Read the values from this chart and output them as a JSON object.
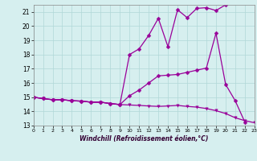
{
  "xlabel": "Windchill (Refroidissement éolien,°C)",
  "xlim": [
    0,
    23
  ],
  "ylim": [
    13,
    21.5
  ],
  "yticks": [
    13,
    14,
    15,
    16,
    17,
    18,
    19,
    20,
    21
  ],
  "xticks": [
    0,
    1,
    2,
    3,
    4,
    5,
    6,
    7,
    8,
    9,
    10,
    11,
    12,
    13,
    14,
    15,
    16,
    17,
    18,
    19,
    20,
    21,
    22,
    23
  ],
  "background_color": "#d6efef",
  "line_color": "#990099",
  "grid_color": "#b0d8d8",
  "line1_x": [
    0,
    1,
    2,
    3,
    4,
    5,
    6,
    7,
    8,
    9,
    10,
    11,
    12,
    13,
    14,
    15,
    16,
    17,
    18,
    19,
    20,
    21,
    22,
    23
  ],
  "line1_y": [
    15.0,
    14.9,
    14.82,
    14.82,
    14.75,
    14.72,
    14.65,
    14.65,
    14.55,
    14.48,
    14.45,
    14.42,
    14.38,
    14.35,
    14.38,
    14.42,
    14.35,
    14.3,
    14.2,
    14.05,
    13.85,
    13.55,
    13.35,
    13.2
  ],
  "line2_x": [
    0,
    1,
    2,
    3,
    4,
    5,
    6,
    7,
    8,
    9,
    10,
    11,
    12,
    13,
    14,
    15,
    16,
    17,
    18,
    19,
    20,
    21,
    22
  ],
  "line2_y": [
    15.0,
    14.9,
    14.82,
    14.82,
    14.75,
    14.72,
    14.65,
    14.65,
    14.55,
    14.48,
    15.1,
    15.5,
    16.0,
    16.5,
    16.55,
    16.6,
    16.75,
    16.9,
    17.05,
    19.5,
    15.9,
    14.75,
    13.25
  ],
  "line3_x": [
    0,
    1,
    2,
    3,
    4,
    5,
    6,
    7,
    8,
    9,
    10,
    11,
    12,
    13,
    14,
    15,
    16,
    17,
    18,
    19,
    20
  ],
  "line3_y": [
    15.0,
    14.9,
    14.82,
    14.82,
    14.75,
    14.72,
    14.65,
    14.65,
    14.55,
    14.48,
    18.0,
    18.4,
    19.35,
    20.55,
    18.55,
    21.15,
    20.6,
    21.25,
    21.3,
    21.1,
    21.5
  ]
}
